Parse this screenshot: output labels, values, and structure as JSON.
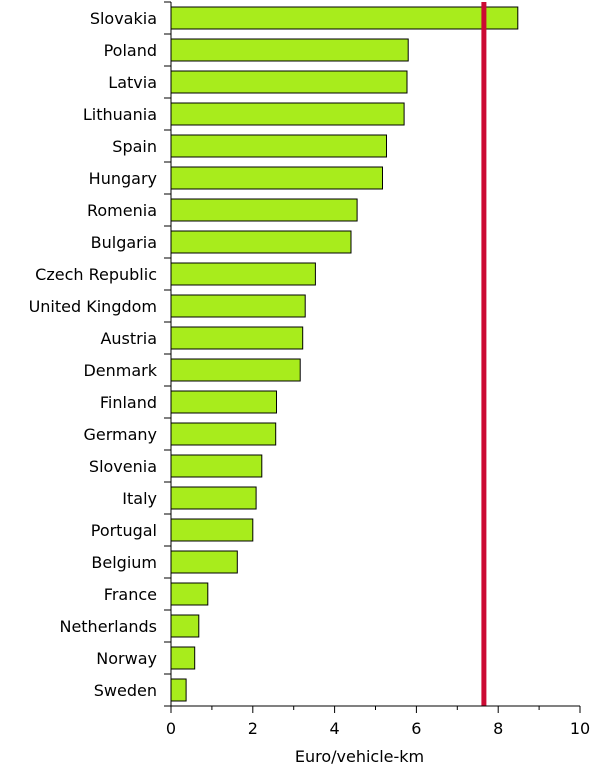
{
  "chart_data": {
    "type": "bar",
    "orientation": "horizontal",
    "categories": [
      "Slovakia",
      "Poland",
      "Latvia",
      "Lithuania",
      "Spain",
      "Hungary",
      "Romenia",
      "Bulgaria",
      "Czech Republic",
      "United Kingdom",
      "Austria",
      "Denmark",
      "Finland",
      "Germany",
      "Slovenia",
      "Italy",
      "Portugal",
      "Belgium",
      "France",
      "Netherlands",
      "Norway",
      "Sweden"
    ],
    "values": [
      8.48,
      5.8,
      5.77,
      5.7,
      5.27,
      5.17,
      4.55,
      4.4,
      3.53,
      3.28,
      3.22,
      3.16,
      2.58,
      2.56,
      2.22,
      2.08,
      2.0,
      1.62,
      0.9,
      0.68,
      0.58,
      0.37
    ],
    "title": "",
    "xlabel": "Euro/vehicle-km",
    "ylabel": "",
    "xlim": [
      0,
      10
    ],
    "xticks": [
      "0",
      "2",
      "4",
      "6",
      "8",
      "10"
    ],
    "reference_line": {
      "value": 7.65,
      "color": "#cc0a33"
    },
    "grid": false,
    "legend": "none",
    "bar_color": "#a8ec1c",
    "bar_stroke": "#000000"
  }
}
